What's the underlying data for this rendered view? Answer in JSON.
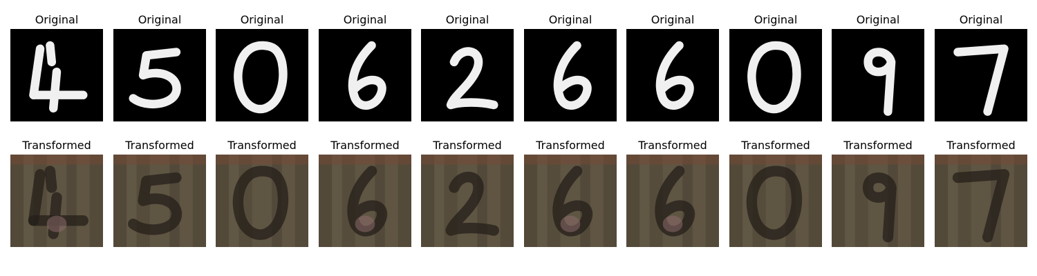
{
  "rows": [
    {
      "kind": "original",
      "title": "Original",
      "digits": [
        "4",
        "5",
        "0",
        "6",
        "2",
        "6",
        "6",
        "0",
        "9",
        "7"
      ]
    },
    {
      "kind": "transformed",
      "title": "Transformed",
      "digits": [
        "4",
        "5",
        "0",
        "6",
        "2",
        "6",
        "6",
        "0",
        "9",
        "7"
      ]
    }
  ],
  "colors": {
    "original_background": "#000000",
    "original_stroke": "#f0f0f0",
    "transformed_background": "#5a5140",
    "transformed_stroke": "#241f1a"
  }
}
